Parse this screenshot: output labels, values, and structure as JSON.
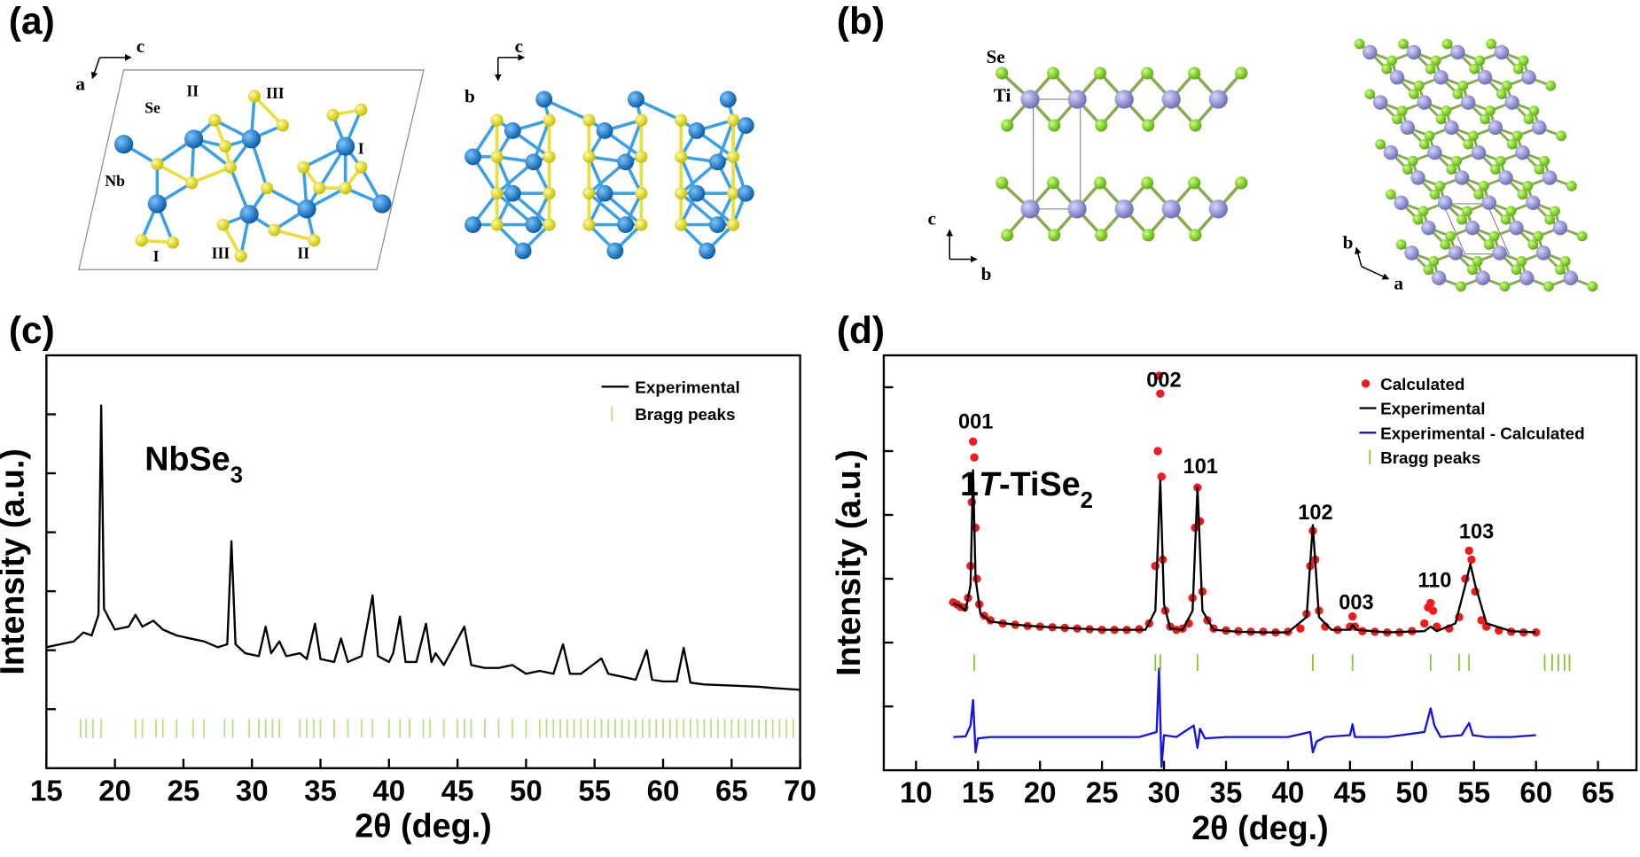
{
  "panels": [
    "(a)",
    "(b)",
    "(c)",
    "(d)"
  ],
  "structures": {
    "a_left": {
      "axes": [
        "c",
        "a"
      ],
      "labels": [
        "Se",
        "II",
        "III",
        "Nb",
        "I",
        "I",
        "III",
        "II"
      ]
    },
    "a_right": {
      "axes": [
        "c",
        "b"
      ]
    },
    "b_left": {
      "axes": [
        "c",
        "b"
      ],
      "labels": [
        "Se",
        "Ti"
      ]
    },
    "b_right": {
      "axes": [
        "b",
        "a"
      ]
    }
  },
  "chart_data": [
    {
      "type": "line",
      "xlabel": "2θ (deg.)",
      "ylabel": "Intensity (a.u.)",
      "annotation": {
        "text": "NbSe",
        "sub": "3"
      },
      "xlim": [
        15,
        70
      ],
      "xticks": [
        15,
        20,
        25,
        30,
        35,
        40,
        45,
        50,
        55,
        60,
        65,
        70
      ],
      "ylim": [
        0,
        7
      ],
      "yticks": [
        1,
        2,
        3,
        4,
        5,
        6
      ],
      "series": [
        {
          "name": "Experimental",
          "color": "#000000",
          "style": "line",
          "x": [
            15,
            16,
            17,
            17.7,
            18.3,
            18.8,
            19.0,
            19.2,
            20,
            21,
            21.5,
            22,
            22.8,
            23.5,
            24.5,
            25.5,
            26.5,
            27.5,
            28.2,
            28.5,
            28.8,
            29.5,
            30.5,
            31,
            31.4,
            32,
            32.5,
            33.5,
            34,
            34.6,
            35,
            36,
            36.5,
            37,
            38,
            38.8,
            39.2,
            40,
            40.3,
            40.8,
            41.2,
            42,
            42.7,
            43.1,
            43.4,
            44,
            45.5,
            46,
            47,
            48,
            49,
            50,
            51,
            52,
            52.7,
            53.2,
            54,
            55.5,
            56,
            57,
            58,
            58.8,
            59.2,
            60,
            61,
            61.5,
            62,
            63,
            65,
            67,
            68,
            70
          ],
          "values": [
            2.05,
            2.1,
            2.15,
            2.3,
            2.25,
            2.6,
            6.15,
            2.7,
            2.35,
            2.4,
            2.6,
            2.4,
            2.5,
            2.35,
            2.25,
            2.2,
            2.15,
            2.05,
            2.1,
            3.85,
            2.1,
            1.95,
            1.9,
            2.4,
            1.95,
            2.15,
            1.9,
            1.95,
            1.85,
            2.45,
            1.85,
            1.8,
            2.2,
            1.8,
            1.9,
            2.93,
            1.9,
            1.8,
            1.95,
            2.57,
            1.8,
            1.8,
            2.45,
            1.8,
            1.95,
            1.75,
            2.4,
            1.75,
            1.7,
            1.7,
            1.75,
            1.6,
            1.65,
            1.6,
            2.1,
            1.6,
            1.6,
            1.86,
            1.6,
            1.55,
            1.5,
            2.0,
            1.5,
            1.47,
            1.47,
            2.04,
            1.45,
            1.42,
            1.4,
            1.38,
            1.36,
            1.33
          ]
        },
        {
          "name": "Bragg peaks",
          "color": "#b8e07c",
          "style": "ticks",
          "x": [
            17.5,
            17.9,
            18.4,
            19,
            21.5,
            22,
            23,
            23.5,
            24.5,
            25.7,
            26.5,
            28,
            28.6,
            29.8,
            30.5,
            31,
            31.5,
            32,
            33.5,
            34,
            34.5,
            35,
            36,
            37,
            38,
            38.8,
            40,
            40.8,
            41.5,
            42.5,
            43,
            44,
            45,
            45.5,
            46,
            47,
            48,
            49,
            50,
            51,
            51.5,
            52,
            52.5,
            53,
            53.5,
            54,
            54.5,
            55,
            55.5,
            56,
            56.5,
            57,
            57.5,
            58,
            58.5,
            59,
            59.5,
            60,
            60.5,
            61,
            61.5,
            62,
            62.5,
            63,
            63.5,
            64,
            64.5,
            65,
            65.5,
            66,
            66.5,
            67,
            67.5,
            68,
            68.5,
            69,
            69.5
          ]
        }
      ]
    },
    {
      "type": "line",
      "xlabel": "2θ (deg.)",
      "ylabel": "Intensity (a.u.)",
      "annotation": {
        "lead": "1",
        "italic": "T",
        "main": "-TiSe",
        "sub": "2"
      },
      "peak_labels": [
        "001",
        "002",
        "101",
        "102",
        "003",
        "110",
        "103"
      ],
      "xlim": [
        7.4,
        68.1
      ],
      "xticks": [
        10,
        15,
        20,
        25,
        30,
        35,
        40,
        45,
        50,
        55,
        60,
        65
      ],
      "ylim": [
        0,
        6.5
      ],
      "yticks": [
        1,
        2,
        3,
        4,
        5,
        6
      ],
      "series": [
        {
          "name": "Calculated",
          "color": "#ee1c1c",
          "style": "dots",
          "x": [
            13,
            13.3,
            13.6,
            13.9,
            14.2,
            14.4,
            14.5,
            14.6,
            14.7,
            14.8,
            14.9,
            15.1,
            15.5,
            16,
            17,
            18,
            19,
            20,
            21,
            22,
            23,
            24,
            25,
            26,
            27,
            28,
            28.8,
            29.3,
            29.5,
            29.6,
            29.7,
            29.8,
            29.9,
            30.1,
            30.5,
            31,
            31.5,
            32,
            32.3,
            32.5,
            32.7,
            32.9,
            33.1,
            33.5,
            34,
            35,
            36,
            37,
            38,
            39,
            40,
            41,
            41.5,
            41.8,
            42,
            42.2,
            42.5,
            43,
            44,
            45,
            45.2,
            45.4,
            46,
            47,
            48,
            49,
            50,
            51,
            51.3,
            51.5,
            51.7,
            52,
            53,
            53.8,
            54.3,
            54.6,
            54.8,
            55.1,
            55.6,
            56,
            57,
            58,
            59,
            60
          ],
          "values": [
            2.63,
            2.6,
            2.56,
            2.55,
            2.7,
            3.2,
            4.2,
            5.15,
            4.9,
            3.8,
            3.0,
            2.6,
            2.42,
            2.35,
            2.3,
            2.28,
            2.26,
            2.25,
            2.24,
            2.23,
            2.22,
            2.21,
            2.2,
            2.2,
            2.2,
            2.21,
            2.3,
            3.2,
            5.0,
            6.18,
            5.9,
            4.6,
            3.3,
            2.5,
            2.25,
            2.2,
            2.22,
            2.3,
            2.7,
            3.8,
            4.43,
            3.9,
            2.8,
            2.35,
            2.22,
            2.19,
            2.18,
            2.17,
            2.17,
            2.16,
            2.17,
            2.22,
            2.45,
            3.2,
            3.75,
            3.3,
            2.5,
            2.25,
            2.2,
            2.25,
            2.41,
            2.25,
            2.18,
            2.17,
            2.16,
            2.16,
            2.18,
            2.3,
            2.55,
            2.62,
            2.5,
            2.25,
            2.22,
            2.4,
            3.0,
            3.44,
            3.3,
            2.8,
            2.35,
            2.25,
            2.19,
            2.17,
            2.16,
            2.16
          ]
        },
        {
          "name": "Experimental",
          "color": "#000000",
          "style": "line",
          "x": [
            13,
            13.5,
            14,
            14.4,
            14.6,
            14.8,
            15.2,
            16,
            18,
            20,
            22,
            25,
            27,
            28.5,
            29.3,
            29.7,
            30.0,
            30.5,
            31.5,
            32.3,
            32.7,
            33.1,
            34,
            36,
            38,
            40,
            41.5,
            42,
            42.5,
            43.5,
            45,
            45.2,
            45.5,
            48,
            51,
            51.5,
            52,
            53.5,
            54.3,
            54.7,
            55.1,
            56,
            58,
            60
          ],
          "values": [
            2.61,
            2.58,
            2.5,
            2.9,
            4.7,
            3.0,
            2.45,
            2.33,
            2.28,
            2.25,
            2.23,
            2.2,
            2.2,
            2.2,
            2.5,
            4.54,
            2.6,
            2.22,
            2.2,
            2.5,
            4.43,
            2.5,
            2.2,
            2.17,
            2.16,
            2.16,
            2.4,
            3.84,
            2.4,
            2.2,
            2.2,
            2.28,
            2.2,
            2.16,
            2.18,
            2.25,
            2.18,
            2.3,
            2.9,
            3.23,
            2.9,
            2.3,
            2.18,
            2.16
          ]
        },
        {
          "name": "Experimental - Calculated",
          "color": "#1515e0",
          "style": "line",
          "x": [
            13,
            14,
            14.4,
            14.6,
            14.8,
            15,
            16,
            20,
            25,
            28,
            29.4,
            29.6,
            29.8,
            30,
            31,
            32.4,
            32.7,
            32.9,
            33.3,
            35,
            40,
            41.8,
            42,
            42.3,
            43,
            45,
            45.2,
            45.4,
            48,
            51,
            51.5,
            51.8,
            52.3,
            54,
            54.6,
            54.9,
            56,
            58,
            60
          ],
          "values": [
            0.52,
            0.53,
            0.7,
            1.1,
            0.28,
            0.5,
            0.52,
            0.52,
            0.52,
            0.52,
            0.6,
            1.59,
            0.05,
            0.55,
            0.52,
            0.7,
            0.35,
            0.65,
            0.5,
            0.52,
            0.52,
            0.6,
            0.28,
            0.45,
            0.52,
            0.55,
            0.72,
            0.52,
            0.52,
            0.6,
            0.97,
            0.7,
            0.52,
            0.55,
            0.74,
            0.55,
            0.52,
            0.52,
            0.55
          ]
        },
        {
          "name": "Bragg peaks",
          "color": "#7fc92a",
          "style": "ticks",
          "x": [
            14.7,
            29.3,
            29.7,
            32.7,
            42,
            45.2,
            51.5,
            53.8,
            54.6,
            60.7,
            61.3,
            61.8,
            62.3,
            62.7
          ]
        }
      ]
    }
  ]
}
